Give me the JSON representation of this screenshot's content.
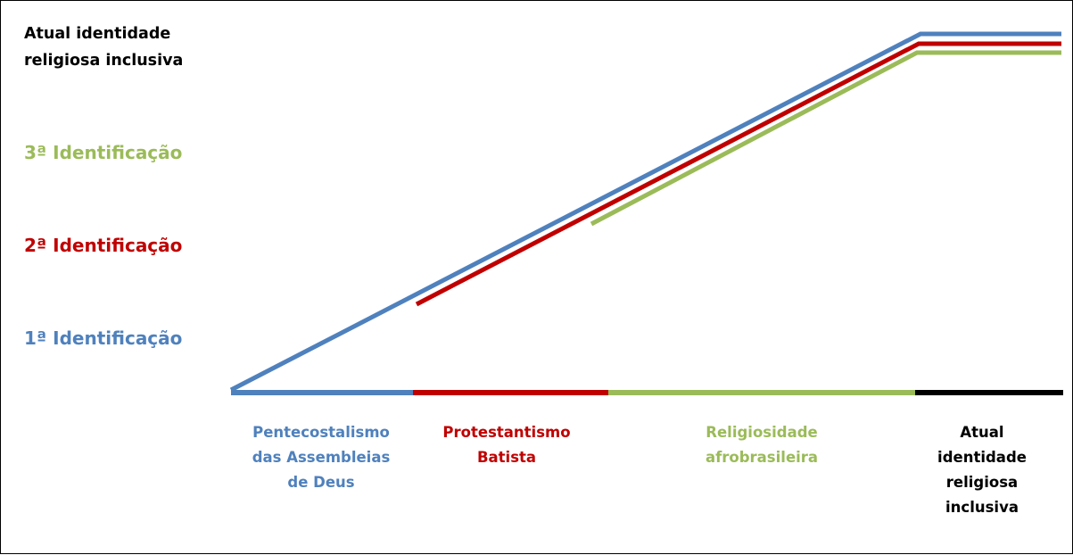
{
  "colors": {
    "blue": "#4f81bd",
    "red": "#c00000",
    "green": "#9bbb59",
    "black": "#000000"
  },
  "levels": {
    "top": [
      "Atual  identidade",
      "religiosa inclusiva"
    ],
    "third": "3ª Identificação",
    "second": "2ª Identificação",
    "first": "1ª Identificação"
  },
  "stages": [
    {
      "lines": [
        "Pentecostalismo",
        "das Assembleias",
        "de Deus"
      ],
      "color": "#4f81bd"
    },
    {
      "lines": [
        "Protestantismo",
        "Batista"
      ],
      "color": "#c00000"
    },
    {
      "lines": [
        "Religiosidade",
        "afrobrasileira"
      ],
      "color": "#9bbb59"
    },
    {
      "lines": [
        "Atual",
        "identidade",
        "religiosa",
        "inclusiva"
      ],
      "color": "#000000"
    }
  ]
}
